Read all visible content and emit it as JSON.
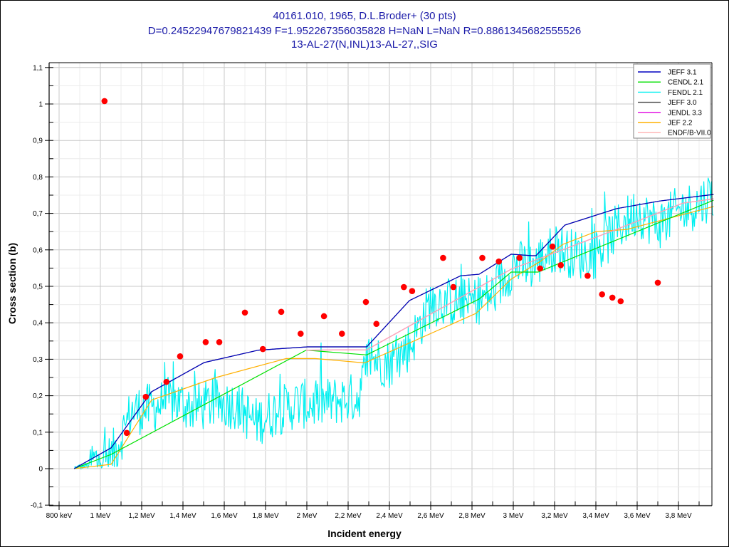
{
  "chart_data": {
    "type": "scatter",
    "title_lines": [
      "40161.010, 1965, D.L.Broder+ (30 pts)",
      "D=0.24522947679821439 F=1.952267356035828 H=NaN L=NaN R=0.8861345682555526",
      "13-AL-27(N,INL)13-AL-27,,SIG"
    ],
    "xlabel": "Incident energy",
    "ylabel": "Cross section (b)",
    "x_unit": "MeV",
    "xlim": [
      0.76,
      3.97
    ],
    "ylim": [
      -0.1,
      1.12
    ],
    "x_ticks": [
      {
        "value": 0.8,
        "label": "800 keV"
      },
      {
        "value": 1.0,
        "label": "1 MeV"
      },
      {
        "value": 1.2,
        "label": "1,2 MeV"
      },
      {
        "value": 1.4,
        "label": "1,4 MeV"
      },
      {
        "value": 1.6,
        "label": "1,6 MeV"
      },
      {
        "value": 1.8,
        "label": "1,8 MeV"
      },
      {
        "value": 2.0,
        "label": "2 MeV"
      },
      {
        "value": 2.2,
        "label": "2,2 MeV"
      },
      {
        "value": 2.4,
        "label": "2,4 MeV"
      },
      {
        "value": 2.6,
        "label": "2,6 MeV"
      },
      {
        "value": 2.8,
        "label": "2,8 MeV"
      },
      {
        "value": 3.0,
        "label": "3 MeV"
      },
      {
        "value": 3.2,
        "label": "3,2 MeV"
      },
      {
        "value": 3.4,
        "label": "3,4 MeV"
      },
      {
        "value": 3.6,
        "label": "3,6 MeV"
      },
      {
        "value": 3.8,
        "label": "3,8 MeV"
      }
    ],
    "y_ticks": [
      {
        "value": -0.1,
        "label": "-0,1"
      },
      {
        "value": 0,
        "label": "0"
      },
      {
        "value": 0.1,
        "label": "0,1"
      },
      {
        "value": 0.2,
        "label": "0,2"
      },
      {
        "value": 0.3,
        "label": "0,3"
      },
      {
        "value": 0.4,
        "label": "0,4"
      },
      {
        "value": 0.5,
        "label": "0,5"
      },
      {
        "value": 0.6,
        "label": "0,6"
      },
      {
        "value": 0.7,
        "label": "0,7"
      },
      {
        "value": 0.8,
        "label": "0,8"
      },
      {
        "value": 0.9,
        "label": "0,9"
      },
      {
        "value": 1.0,
        "label": "1"
      },
      {
        "value": 1.1,
        "label": "1,1"
      }
    ],
    "grid": true,
    "legend_position": "top-right",
    "experimental": {
      "name": "40161.010 D.L.Broder+",
      "color": "#ff0000",
      "x": [
        1.02,
        1.128,
        1.22,
        1.32,
        1.386,
        1.51,
        1.576,
        1.7,
        1.787,
        1.876,
        1.97,
        2.083,
        2.17,
        2.286,
        2.337,
        2.47,
        2.51,
        2.66,
        2.71,
        2.85,
        2.93,
        3.03,
        3.13,
        3.19,
        3.23,
        3.36,
        3.43,
        3.48,
        3.52,
        3.7
      ],
      "y": [
        1.008,
        0.098,
        0.197,
        0.238,
        0.308,
        0.347,
        0.347,
        0.428,
        0.328,
        0.43,
        0.37,
        0.418,
        0.37,
        0.457,
        0.397,
        0.498,
        0.487,
        0.578,
        0.498,
        0.578,
        0.568,
        0.578,
        0.549,
        0.609,
        0.558,
        0.529,
        0.478,
        0.469,
        0.459,
        0.51
      ]
    },
    "series": [
      {
        "name": "JEFF 3.1",
        "color": "#0000c0",
        "x": [
          0.873,
          1.052,
          1.248,
          1.503,
          1.766,
          2.003,
          2.283,
          2.29,
          2.497,
          2.745,
          2.834,
          2.99,
          3.09,
          3.11,
          3.25,
          3.5,
          3.71,
          3.97
        ],
        "y": [
          0.0,
          0.057,
          0.211,
          0.291,
          0.325,
          0.334,
          0.334,
          0.334,
          0.461,
          0.529,
          0.533,
          0.588,
          0.584,
          0.584,
          0.668,
          0.713,
          0.734,
          0.752
        ]
      },
      {
        "name": "CENDL 2.1",
        "color": "#00e000",
        "x": [
          0.873,
          1.052,
          1.997,
          2.29,
          2.834,
          2.99,
          3.12,
          3.97
        ],
        "y": [
          0.0,
          0.039,
          0.325,
          0.312,
          0.465,
          0.539,
          0.539,
          0.736
        ]
      },
      {
        "name": "FENDL 2.1",
        "color": "#00f0f0",
        "noisy": true,
        "x": [
          0.873,
          0.95,
          1.05,
          1.1,
          1.15,
          1.25,
          1.35,
          1.45,
          1.55,
          1.65,
          1.75,
          1.85,
          1.95,
          2.05,
          2.15,
          2.25,
          2.3,
          2.4,
          2.5,
          2.6,
          2.7,
          2.8,
          2.9,
          3.0,
          3.1,
          3.2,
          3.3,
          3.4,
          3.5,
          3.6,
          3.7,
          3.8,
          3.9,
          3.97
        ],
        "y": [
          0.0,
          0.01,
          0.02,
          0.08,
          0.15,
          0.16,
          0.18,
          0.16,
          0.17,
          0.17,
          0.12,
          0.15,
          0.17,
          0.17,
          0.18,
          0.19,
          0.3,
          0.28,
          0.33,
          0.45,
          0.45,
          0.45,
          0.47,
          0.55,
          0.55,
          0.6,
          0.58,
          0.58,
          0.65,
          0.7,
          0.66,
          0.7,
          0.72,
          0.75
        ],
        "amplitude": 0.07
      },
      {
        "name": "JEFF 3.0",
        "color": "#404040",
        "x": [
          0.873,
          1.052,
          1.248,
          1.503,
          1.766,
          2.003,
          2.283,
          2.29,
          2.497,
          2.745,
          2.834,
          2.99,
          3.09,
          3.11,
          3.25,
          3.5,
          3.71,
          3.97
        ],
        "y": [
          0.0,
          0.057,
          0.211,
          0.291,
          0.325,
          0.334,
          0.334,
          0.334,
          0.461,
          0.529,
          0.533,
          0.588,
          0.584,
          0.584,
          0.668,
          0.713,
          0.734,
          0.752
        ]
      },
      {
        "name": "JENDL 3.3",
        "color": "#e000e0",
        "x": [
          1.997,
          2.29,
          2.99,
          3.5,
          3.82,
          3.97
        ],
        "y": [
          0.325,
          0.326,
          0.547,
          0.656,
          0.728,
          0.74
        ]
      },
      {
        "name": "JEF 2.2",
        "color": "#ffb000",
        "x": [
          0.873,
          1.052,
          1.248,
          1.56,
          1.9,
          2.04,
          2.28,
          2.82,
          2.99,
          3.13,
          3.24,
          3.4,
          3.55,
          3.97
        ],
        "y": [
          0.0,
          0.012,
          0.188,
          0.25,
          0.302,
          0.302,
          0.29,
          0.426,
          0.52,
          0.568,
          0.615,
          0.65,
          0.656,
          0.719
        ]
      },
      {
        "name": "ENDF/B-VII.0",
        "color": "#ffb0b0",
        "x": [
          1.997,
          2.29,
          2.99,
          3.5,
          3.82,
          3.97
        ],
        "y": [
          0.325,
          0.326,
          0.547,
          0.656,
          0.728,
          0.74
        ]
      }
    ]
  }
}
